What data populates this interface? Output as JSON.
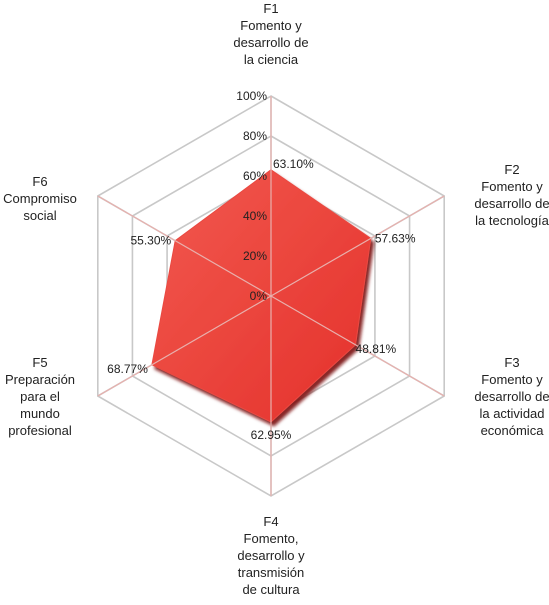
{
  "chart_data": {
    "type": "radar",
    "title": "",
    "axes": [
      {
        "code": "F1",
        "lines": [
          "Fomento y",
          "desarrollo de",
          "la ciencia"
        ]
      },
      {
        "code": "F2",
        "lines": [
          "Fomento y",
          "desarrollo de",
          "la tecnología"
        ]
      },
      {
        "code": "F3",
        "lines": [
          "Fomento y",
          "desarrollo de",
          "la actividad",
          "económica"
        ]
      },
      {
        "code": "F4",
        "lines": [
          "Fomento,",
          "desarrollo y",
          "transmisión",
          "de cultura"
        ]
      },
      {
        "code": "F5",
        "lines": [
          "Preparación",
          "para el",
          "mundo",
          "profesional"
        ]
      },
      {
        "code": "F6",
        "lines": [
          "Compromiso",
          "social"
        ]
      }
    ],
    "values": [
      63.1,
      57.63,
      48.81,
      62.95,
      68.77,
      55.3
    ],
    "value_labels": [
      "63.10%",
      "57.63%",
      "48.81%",
      "62.95%",
      "68.77%",
      "55.30%"
    ],
    "ticks": [
      0,
      20,
      40,
      60,
      80,
      100
    ],
    "tick_labels": [
      "0%",
      "20%",
      "40%",
      "60%",
      "80%",
      "100%"
    ],
    "range": [
      0,
      100
    ],
    "grid": true,
    "legend": "none",
    "colors": {
      "fill": "#f0403a",
      "shadow": "#8e1414",
      "grid": "#c8c8c8"
    }
  }
}
